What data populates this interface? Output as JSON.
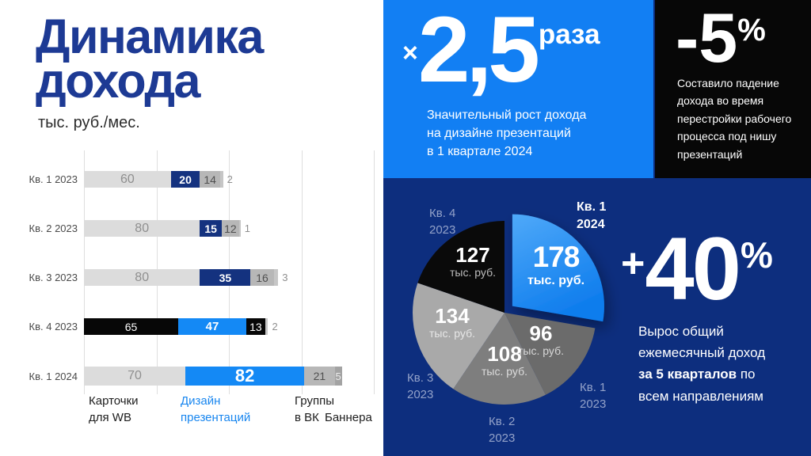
{
  "header": {
    "title_line1": "Динамика",
    "title_line2": "дохода",
    "subtitle": "тыс. руб./мес."
  },
  "chart_data": [
    {
      "type": "bar",
      "orientation": "horizontal",
      "stacked": true,
      "title": "Динамика дохода",
      "unit": "тыс. руб./мес.",
      "categories": [
        "Кв. 1 2023",
        "Кв. 2 2023",
        "Кв. 3 2023",
        "Кв. 4 2023",
        "Кв. 1 2024"
      ],
      "series": [
        {
          "name": "Карточки для WB",
          "values": [
            60,
            80,
            80,
            65,
            70
          ]
        },
        {
          "name": "Дизайн презентаций",
          "values": [
            20,
            15,
            35,
            47,
            82
          ]
        },
        {
          "name": "Группы в ВК",
          "values": [
            14,
            12,
            16,
            13,
            21
          ]
        },
        {
          "name": "Баннера",
          "values": [
            2,
            1,
            3,
            2,
            5
          ]
        }
      ],
      "xlim": [
        0,
        200
      ],
      "gridline_step": 50,
      "gridlines": true,
      "legend_position": "bottom",
      "legend": [
        "Карточки\nдля WB",
        "Дизайн\nпрезентаций",
        "Группы\nв ВК",
        "Баннера"
      ],
      "legend_highlight": "Дизайн презентаций"
    },
    {
      "type": "pie",
      "labels": [
        "Кв. 1 2024",
        "Кв. 1 2023",
        "Кв. 2 2023",
        "Кв. 3 2023",
        "Кв. 4 2023"
      ],
      "labels_display": [
        "Кв. 1\n2024",
        "Кв. 1\n2023",
        "Кв. 2\n2023",
        "Кв. 3\n2023",
        "Кв. 4\n2023"
      ],
      "values": [
        178,
        96,
        108,
        134,
        127
      ],
      "unit": "тыс. руб.",
      "exploded": "Кв. 1 2024",
      "colors": [
        "#2a95f7",
        "#6b6b6b",
        "#7e7e7e",
        "#a9a9a9",
        "#0a0a0a"
      ]
    }
  ],
  "callouts": {
    "growth": {
      "prefix": "×",
      "value": "2,5",
      "suffix": "раза",
      "description": "Значительный рост дохода\nна дизайне презентаций\nв 1 квартале 2024"
    },
    "drop": {
      "value": "-5",
      "suffix": "%",
      "description": "Составило падение\nдохода во время\nперестройки рабочего\nпроцесса под нишу\nпрезентаций"
    },
    "total": {
      "prefix": "+",
      "value": "40",
      "suffix": "%",
      "line1": "Вырос общий",
      "line2": "ежемесячный доход",
      "line3_bold": "за 5 кварталов",
      "line3_rest": " по",
      "line4": "всем направлениям"
    }
  },
  "colors": {
    "title_navy": "#1d3a94",
    "accent_blue": "#127ff3",
    "bright_bar_blue": "#1489f5",
    "dark_bar_blue": "#14327f",
    "navy_bg": "#0d2e7e",
    "black_block": "#070707",
    "pie_blue_gradient": [
      "#4fa9f9",
      "#0f7ded"
    ],
    "legend_blue": "#1886ef"
  }
}
